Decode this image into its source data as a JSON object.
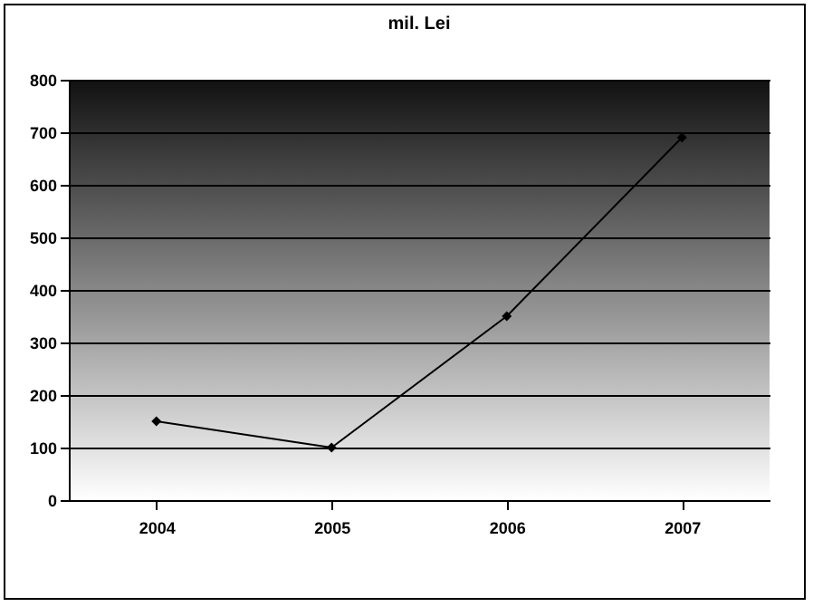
{
  "chart_data": {
    "type": "line",
    "title": "mil. Lei",
    "categories": [
      "2004",
      "2005",
      "2006",
      "2007"
    ],
    "series": [
      {
        "color": "#000000",
        "values": [
          150,
          100,
          350,
          690
        ]
      }
    ],
    "ylim": [
      0,
      800
    ],
    "yticks": [
      0,
      100,
      200,
      300,
      400,
      500,
      600,
      700,
      800
    ],
    "grid": "y",
    "marker": "diamond",
    "line_style": "solid",
    "legend": false
  }
}
